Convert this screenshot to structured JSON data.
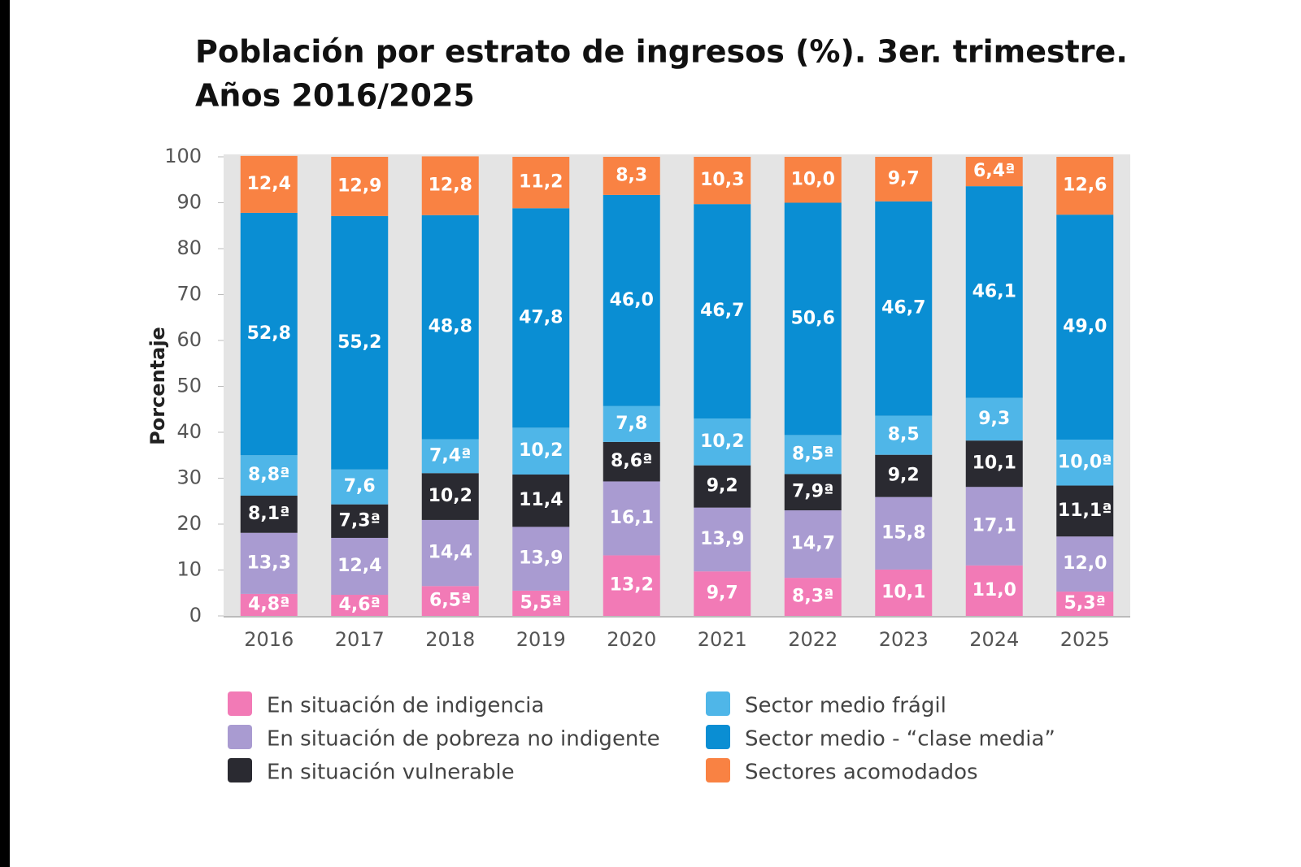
{
  "chart_data": {
    "type": "stacked-bar",
    "title": [
      "Población por estrato de ingresos (%). 3er. trimestre.",
      "Años 2016/2025"
    ],
    "y_label": "Porcentaje",
    "categories": [
      "2016",
      "2017",
      "2018",
      "2019",
      "2020",
      "2021",
      "2022",
      "2023",
      "2024",
      "2025"
    ],
    "ylim": [
      0,
      100
    ],
    "yticks": [
      0,
      10,
      20,
      30,
      40,
      50,
      60,
      70,
      80,
      90,
      100
    ],
    "series": [
      {
        "name": "En situación de indigencia",
        "color": "#f27ab6",
        "values": [
          4.8,
          4.6,
          6.5,
          5.5,
          13.2,
          9.7,
          8.3,
          10.1,
          11.0,
          5.3
        ],
        "value_labels": [
          "4,8ª",
          "4,6ª",
          "6,5ª",
          "5,5ª",
          "13,2",
          "9,7",
          "8,3ª",
          "10,1",
          "11,0",
          "5,3ª"
        ]
      },
      {
        "name": "En situación de pobreza no indigente",
        "color": "#a99bd1",
        "values": [
          13.3,
          12.4,
          14.4,
          13.9,
          16.1,
          13.9,
          14.7,
          15.8,
          17.1,
          12.0
        ],
        "value_labels": [
          "13,3",
          "12,4",
          "14,4",
          "13,9",
          "16,1",
          "13,9",
          "14,7",
          "15,8",
          "17,1",
          "12,0"
        ]
      },
      {
        "name": "En situación vulnerable",
        "color": "#2a2a31",
        "values": [
          8.1,
          7.3,
          10.2,
          11.4,
          8.6,
          9.2,
          7.9,
          9.2,
          10.1,
          11.1
        ],
        "value_labels": [
          "8,1ª",
          "7,3ª",
          "10,2",
          "11,4",
          "8,6ª",
          "9,2",
          "7,9ª",
          "9,2",
          "10,1",
          "11,1ª"
        ]
      },
      {
        "name": "Sector medio frágil",
        "color": "#4fb6e8",
        "values": [
          8.8,
          7.6,
          7.4,
          10.2,
          7.8,
          10.2,
          8.5,
          8.5,
          9.3,
          10.0
        ],
        "value_labels": [
          "8,8ª",
          "7,6",
          "7,4ª",
          "10,2",
          "7,8",
          "10,2",
          "8,5ª",
          "8,5",
          "9,3",
          "10,0ª"
        ]
      },
      {
        "name": "Sector medio - “clase media”",
        "color": "#0a8ed3",
        "values": [
          52.8,
          55.2,
          48.8,
          47.8,
          46.0,
          46.7,
          50.6,
          46.7,
          46.1,
          49.0
        ],
        "value_labels": [
          "52,8",
          "55,2",
          "48,8",
          "47,8",
          "46,0",
          "46,7",
          "50,6",
          "46,7",
          "46,1",
          "49,0"
        ]
      },
      {
        "name": "Sectores acomodados",
        "color": "#f98243",
        "values": [
          12.4,
          12.9,
          12.8,
          11.2,
          8.3,
          10.3,
          10.0,
          9.7,
          6.4,
          12.6
        ],
        "value_labels": [
          "12,4",
          "12,9",
          "12,8",
          "11,2",
          "8,3",
          "10,3",
          "10,0",
          "9,7",
          "6,4ª",
          "12,6"
        ]
      }
    ]
  }
}
